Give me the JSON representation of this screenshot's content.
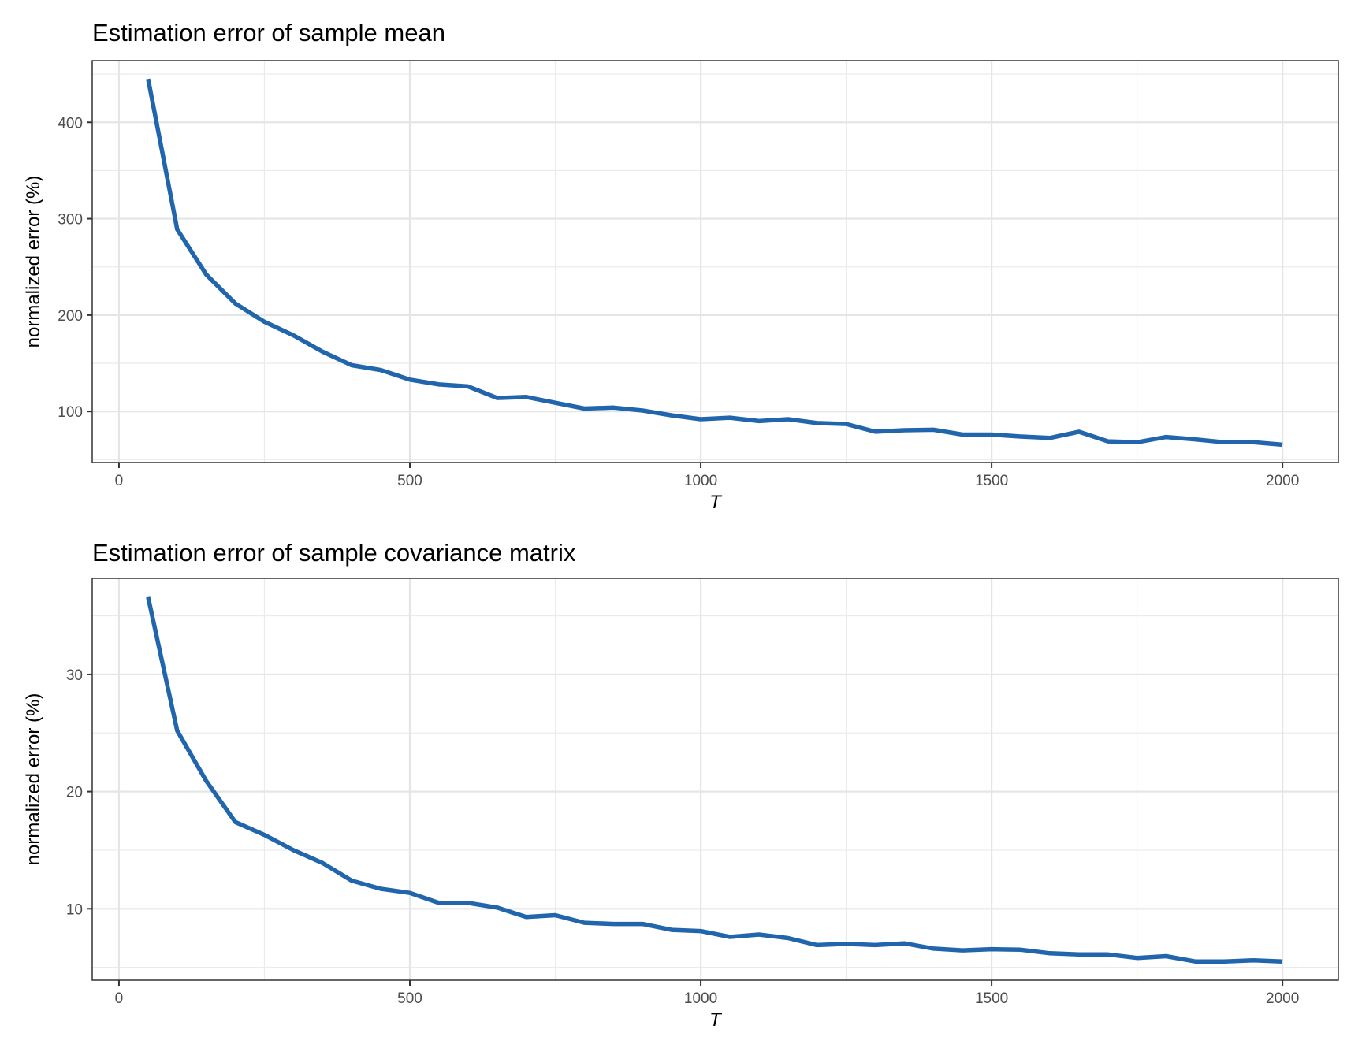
{
  "chart_data": [
    {
      "type": "line",
      "title": "Estimation error of sample mean",
      "xlabel": "T",
      "ylabel": "normalized error (%)",
      "xlim": [
        -46,
        2096
      ],
      "ylim": [
        47,
        464
      ],
      "xticks": [
        0,
        500,
        1000,
        1500,
        2000
      ],
      "yticks": [
        100,
        200,
        300,
        400
      ],
      "y_minor": [
        50,
        150,
        250,
        350,
        450
      ],
      "x_minor": [
        250,
        750,
        1250,
        1750
      ],
      "grid": true,
      "color": "#2166ac",
      "x": [
        50,
        100,
        150,
        200,
        250,
        300,
        350,
        400,
        450,
        500,
        550,
        600,
        650,
        700,
        750,
        800,
        850,
        900,
        950,
        1000,
        1050,
        1100,
        1150,
        1200,
        1250,
        1300,
        1350,
        1400,
        1450,
        1500,
        1550,
        1600,
        1650,
        1700,
        1750,
        1800,
        1850,
        1900,
        1950,
        2000
      ],
      "values": [
        445,
        289,
        242,
        212,
        193,
        179,
        162,
        148,
        143,
        133,
        128,
        126,
        114,
        115,
        109,
        103,
        104,
        101,
        96,
        92,
        93.5,
        90,
        92,
        88,
        87,
        79,
        80.5,
        81,
        76,
        76,
        74,
        72.5,
        79,
        69,
        68,
        73.5,
        71,
        68,
        68,
        65.5
      ]
    },
    {
      "type": "line",
      "title": "Estimation error of sample covariance matrix",
      "xlabel": "T",
      "ylabel": "normalized error (%)",
      "xlim": [
        -46,
        2096
      ],
      "ylim": [
        3.9,
        38.2
      ],
      "xticks": [
        0,
        500,
        1000,
        1500,
        2000
      ],
      "yticks": [
        10,
        20,
        30
      ],
      "y_minor": [
        5,
        15,
        25,
        35
      ],
      "x_minor": [
        250,
        750,
        1250,
        1750
      ],
      "grid": true,
      "color": "#2166ac",
      "x": [
        50,
        100,
        150,
        200,
        250,
        300,
        350,
        400,
        450,
        500,
        550,
        600,
        650,
        700,
        750,
        800,
        850,
        900,
        950,
        1000,
        1050,
        1100,
        1150,
        1200,
        1250,
        1300,
        1350,
        1400,
        1450,
        1500,
        1550,
        1600,
        1650,
        1700,
        1750,
        1800,
        1850,
        1900,
        1950,
        2000
      ],
      "values": [
        36.6,
        25.2,
        20.9,
        17.4,
        16.3,
        15.0,
        13.9,
        12.4,
        11.7,
        11.35,
        10.5,
        10.5,
        10.1,
        9.3,
        9.45,
        8.8,
        8.7,
        8.7,
        8.2,
        8.1,
        7.6,
        7.8,
        7.5,
        6.9,
        7.0,
        6.9,
        7.05,
        6.6,
        6.45,
        6.55,
        6.5,
        6.2,
        6.1,
        6.1,
        5.8,
        5.95,
        5.5,
        5.5,
        5.6,
        5.5
      ]
    }
  ],
  "panels": [
    {
      "title": "Estimation error of sample mean"
    },
    {
      "title": "Estimation error of sample covariance matrix"
    }
  ]
}
